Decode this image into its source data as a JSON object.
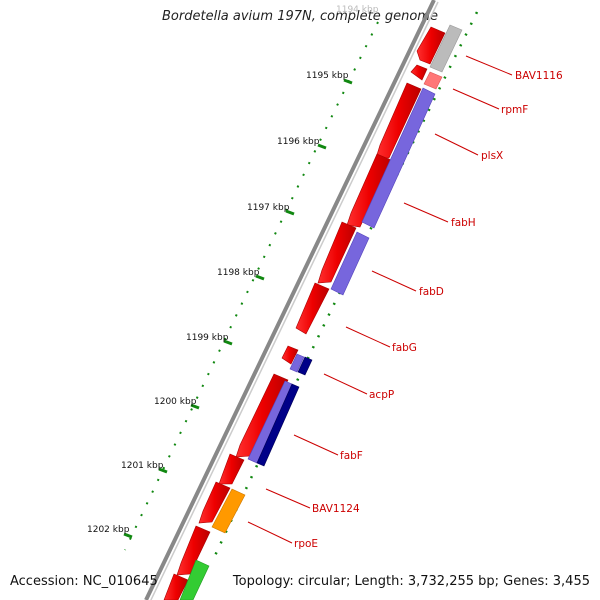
{
  "title": "Bordetella avium 197N, complete genome",
  "footer": {
    "accession": "Accession: NC_010645",
    "topology": "Topology: circular; Length: 3,732,255 bp; Genes: 3,455"
  },
  "kbp_labels": [
    "1194 kbp",
    "1195 kbp",
    "1196 kbp",
    "1197 kbp",
    "1198 kbp",
    "1199 kbp",
    "1200 kbp",
    "1201 kbp",
    "1202 kbp"
  ],
  "gene_labels": [
    "BAV1116",
    "rpmF",
    "plsX",
    "fabH",
    "fabD",
    "fabG",
    "acpP",
    "fabF",
    "BAV1124",
    "rpoE"
  ],
  "colors": {
    "backbone": "#888888",
    "cds_red": "#ff0000",
    "blast_blue": "#7766dd",
    "blast_navy": "#000088",
    "blast_gray": "#bbbbbb",
    "blast_orange": "#ff9900",
    "blast_green": "#33cc33",
    "tick_green": "#008800",
    "label_red": "#cc0000"
  }
}
